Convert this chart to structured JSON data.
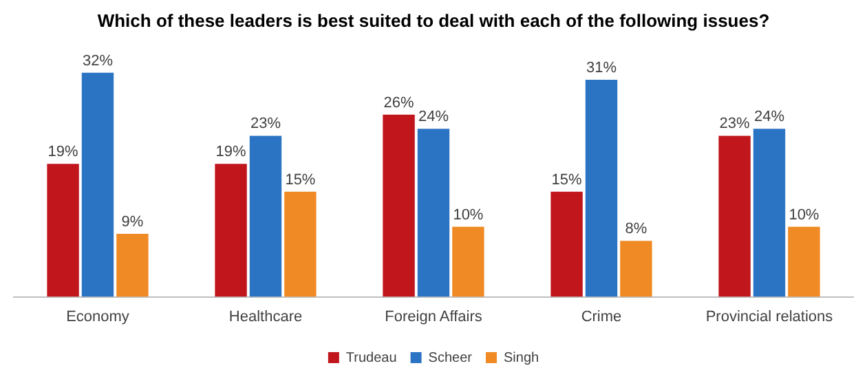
{
  "chart_data": {
    "type": "bar",
    "title": "Which of these leaders is best suited to deal with each of the following issues?",
    "categories": [
      "Economy",
      "Healthcare",
      "Foreign Affairs",
      "Crime",
      "Provincial relations"
    ],
    "series": [
      {
        "name": "Trudeau",
        "color": "#c0161c",
        "values": [
          19,
          19,
          26,
          15,
          23
        ],
        "value_labels": [
          "19%",
          "19%",
          "26%",
          "15%",
          "23%"
        ]
      },
      {
        "name": "Scheer",
        "color": "#2b74c4",
        "values": [
          32,
          23,
          24,
          31,
          24
        ],
        "value_labels": [
          "32%",
          "23%",
          "24%",
          "31%",
          "24%"
        ]
      },
      {
        "name": "Singh",
        "color": "#f08a24",
        "values": [
          9,
          15,
          10,
          8,
          10
        ],
        "value_labels": [
          "9%",
          "15%",
          "10%",
          "8%",
          "10%"
        ]
      }
    ],
    "legend": "bottom",
    "grid": false
  }
}
